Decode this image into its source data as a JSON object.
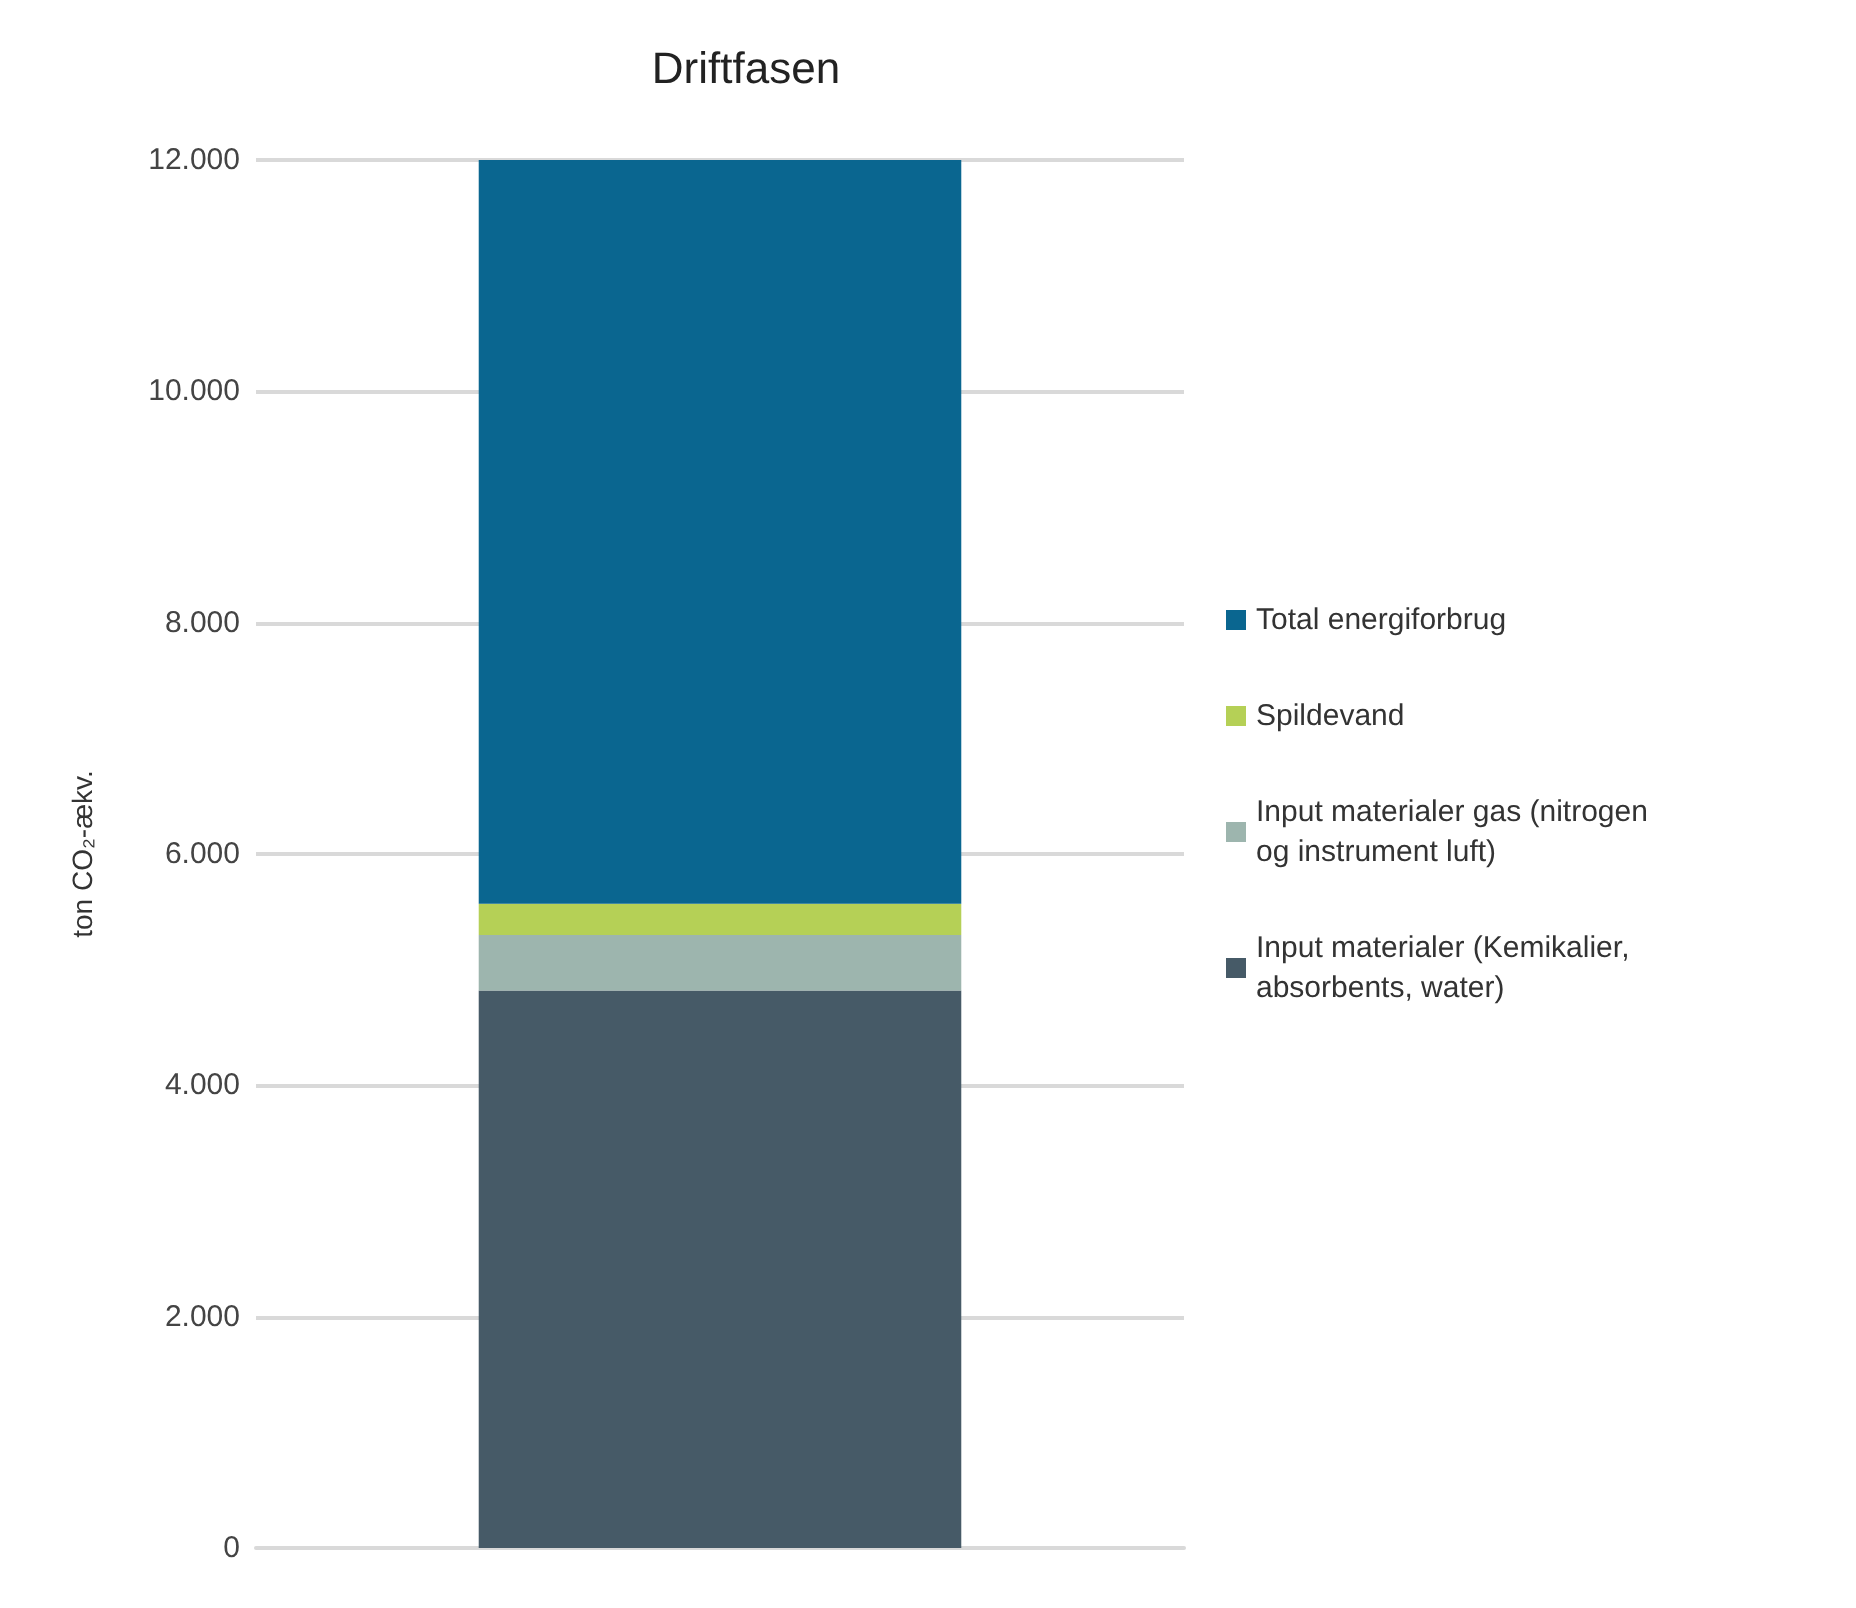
{
  "chart_data": {
    "type": "bar",
    "title": "Driftfasen",
    "ylabel": "ton CO₂-ækv.",
    "categories": [
      null
    ],
    "stacked": true,
    "series": [
      {
        "name": "Input materialer (Kemikalier, absorbents, water)",
        "color": "#465a67",
        "values": [
          4820
        ]
      },
      {
        "name": "Input materialer gas (nitrogen og instrument luft)",
        "color": "#9db5ae",
        "values": [
          480
        ]
      },
      {
        "name": "Spildevand",
        "color": "#b5d056",
        "values": [
          270
        ]
      },
      {
        "name": "Total energiforbrug",
        "color": "#0a6690",
        "values": [
          6430
        ]
      }
    ],
    "ylim": [
      0,
      12000
    ],
    "yticks": [
      {
        "value": 0,
        "label": "0"
      },
      {
        "value": 2000,
        "label": "2.000"
      },
      {
        "value": 4000,
        "label": "4.000"
      },
      {
        "value": 6000,
        "label": "6.000"
      },
      {
        "value": 8000,
        "label": "8.000"
      },
      {
        "value": 10000,
        "label": "10.000"
      },
      {
        "value": 12000,
        "label": "12.000"
      }
    ],
    "grid": "y",
    "legend": "right"
  }
}
